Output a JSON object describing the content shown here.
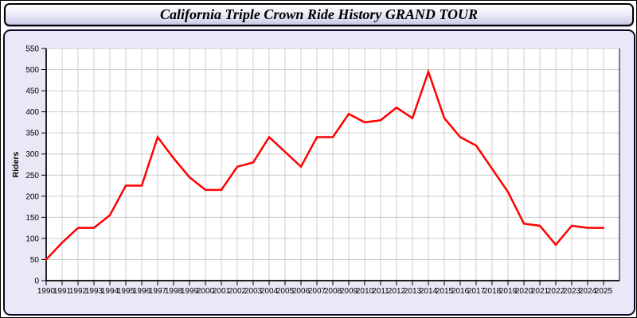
{
  "window": {
    "title": "California Triple Crown Ride History GRAND TOUR"
  },
  "colors": {
    "line": "#ff0000",
    "panel_bg": "#e8e8f7",
    "plot_bg": "#ffffff",
    "grid": "#cccccc",
    "axis": "#000000",
    "text": "#000000"
  },
  "chart_data": {
    "type": "line",
    "title": "California Triple Crown Ride History GRAND TOUR",
    "xlabel": "",
    "ylabel": "Riders",
    "ylim": [
      0,
      550
    ],
    "ytick_step": 50,
    "grid": true,
    "legend_position": "none",
    "x": [
      1990,
      1991,
      1992,
      1993,
      1994,
      1995,
      1996,
      1997,
      1998,
      1999,
      2000,
      2001,
      2002,
      2003,
      2004,
      2005,
      2006,
      2007,
      2008,
      2009,
      2010,
      2011,
      2012,
      2013,
      2014,
      2015,
      2016,
      2017,
      2018,
      2019,
      2020,
      2021,
      2022,
      2023,
      2024,
      2025
    ],
    "series": [
      {
        "name": "Riders",
        "color": "#ff0000",
        "values": [
          50,
          90,
          125,
          125,
          155,
          225,
          225,
          340,
          290,
          245,
          215,
          215,
          270,
          280,
          340,
          305,
          270,
          340,
          340,
          395,
          375,
          380,
          410,
          385,
          495,
          385,
          340,
          320,
          265,
          210,
          135,
          130,
          85,
          130,
          125,
          125
        ]
      }
    ]
  }
}
